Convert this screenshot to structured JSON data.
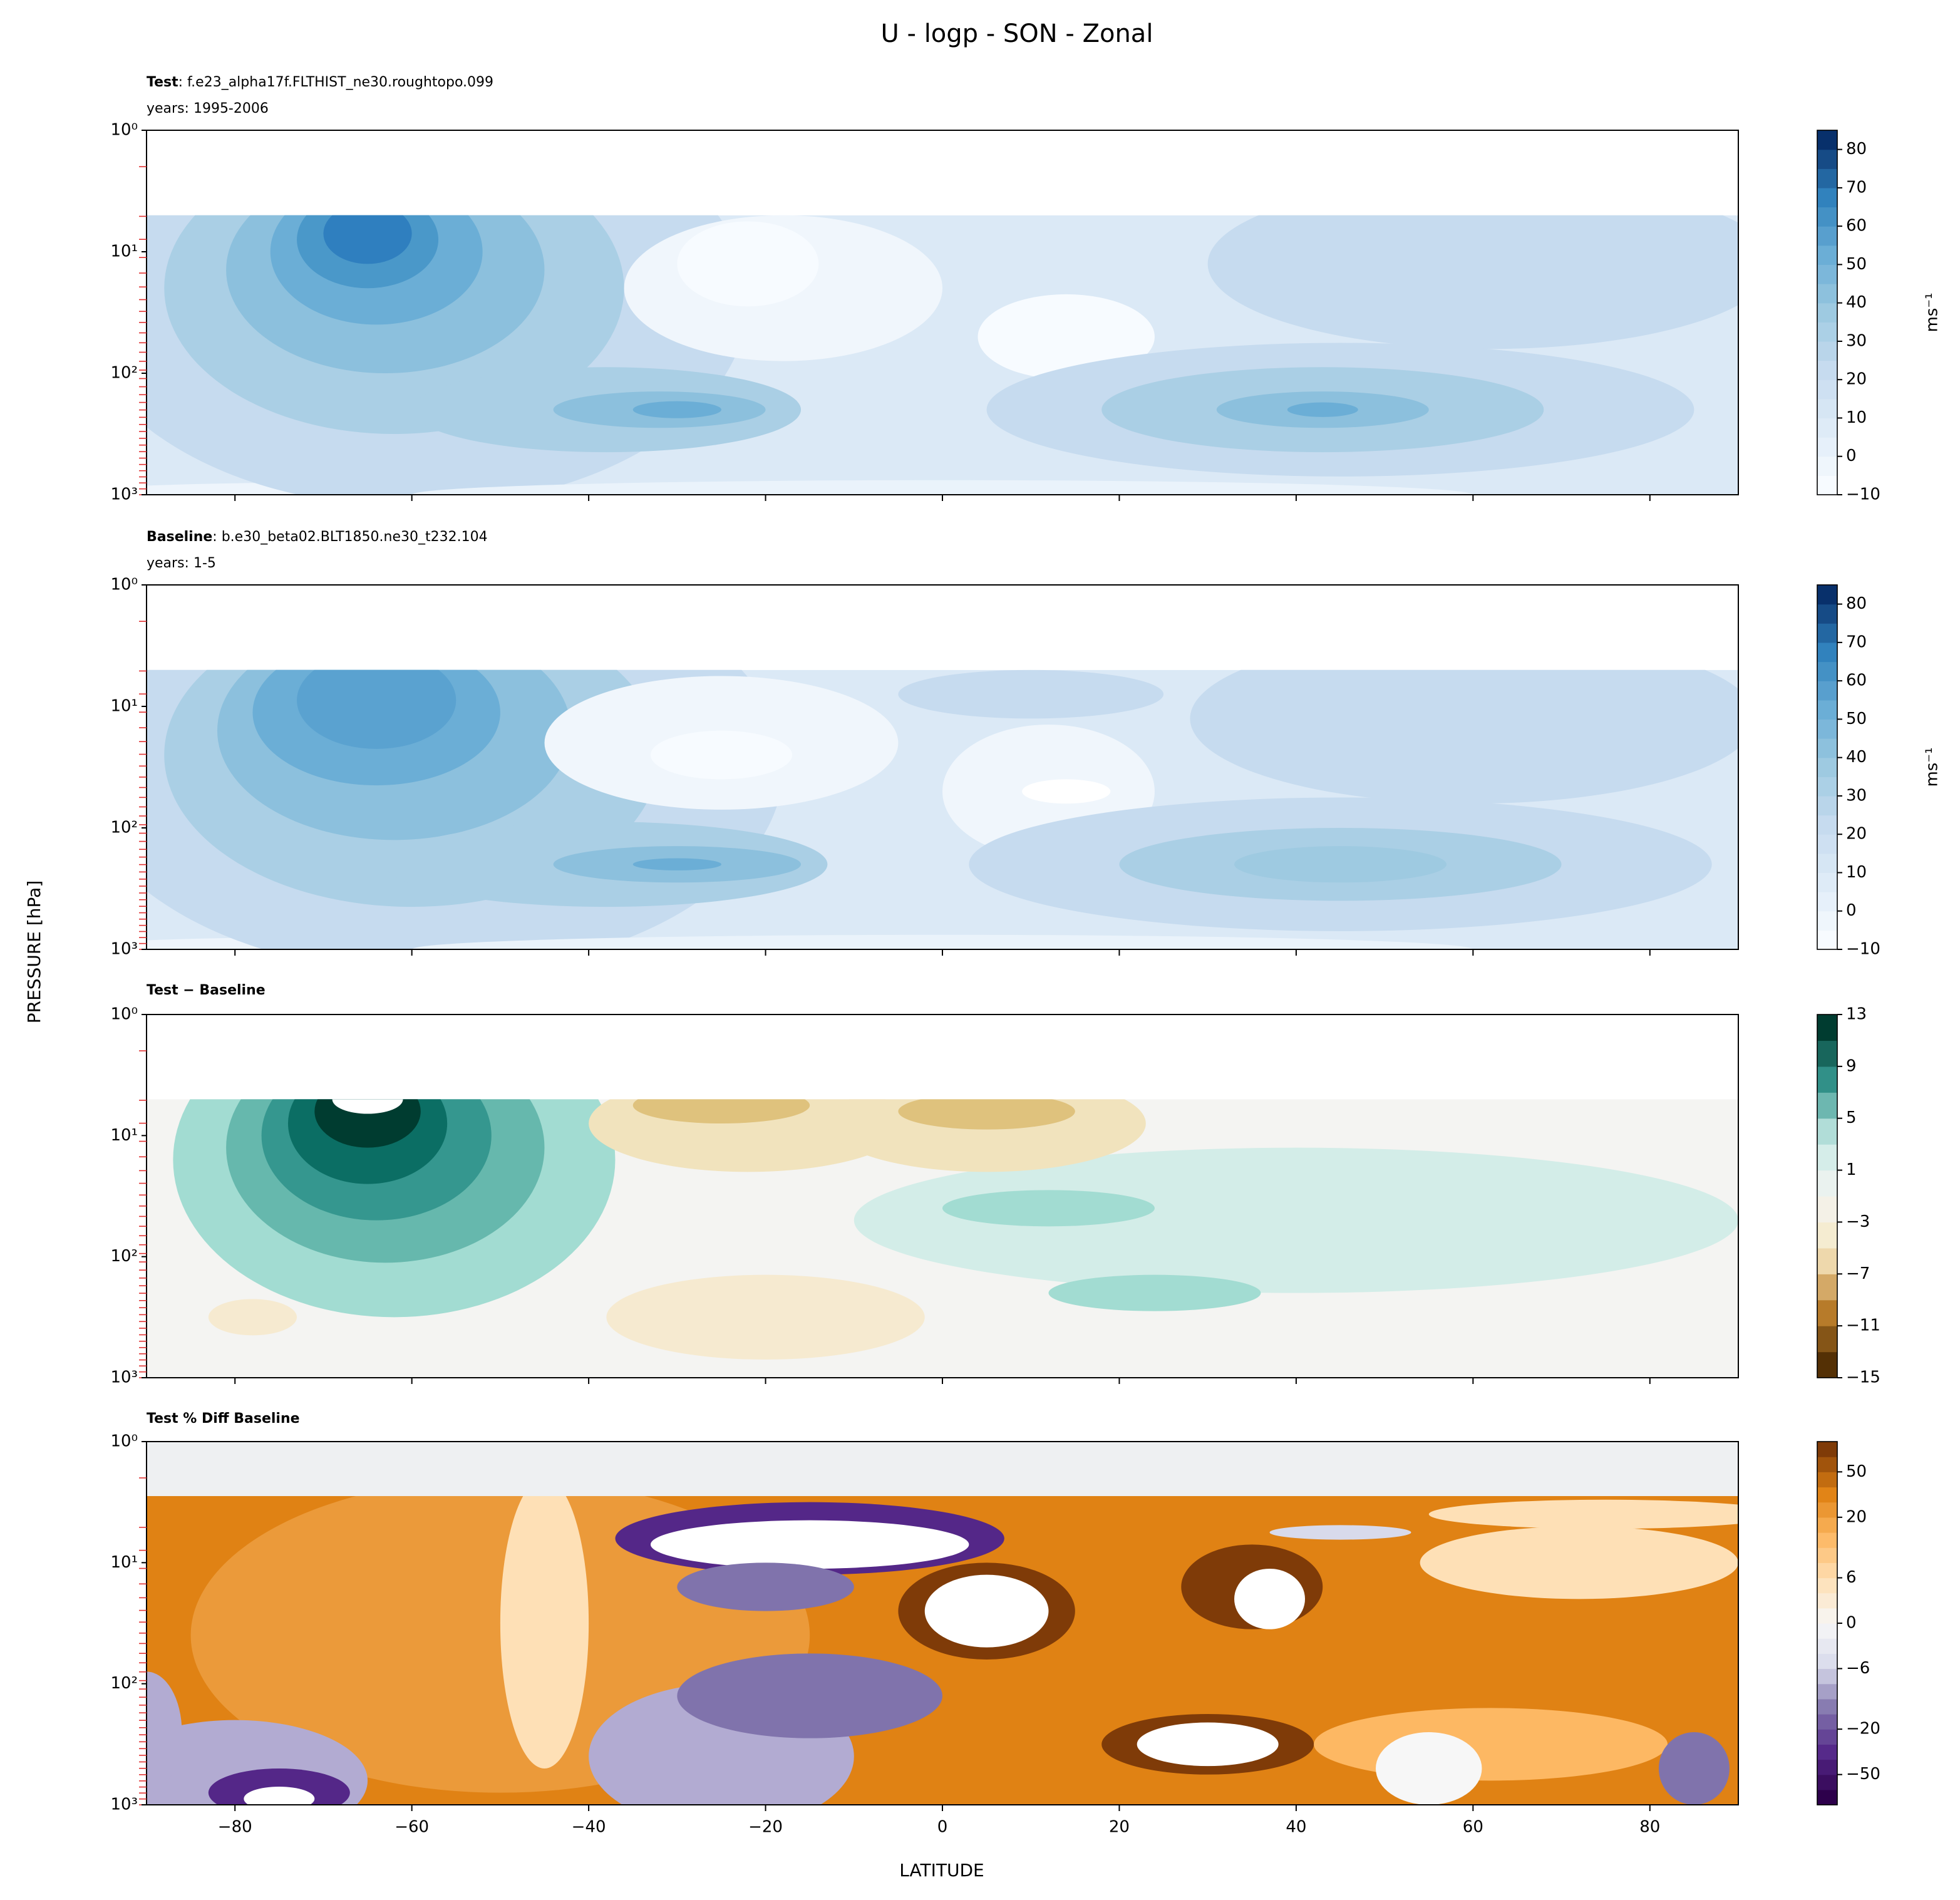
{
  "title": "U - logp - SON - Zonal",
  "y_label": "PRESSURE [hPa]",
  "x_label": "LATITUDE",
  "chart_data": [
    {
      "type": "contour",
      "title": "Test",
      "case_name": ": f.e23_alpha17f.FLTHIST_ne30.roughtopo.099",
      "subtitle": "years: 1995-2006",
      "xlim": [
        -90,
        90
      ],
      "xticks": [
        -80,
        -60,
        -40,
        -20,
        0,
        20,
        40,
        60,
        80
      ],
      "xticklabels": false,
      "ylim": [
        1000,
        1
      ],
      "log_y": true,
      "yticks": [
        {
          "value": 1,
          "label": "10⁰"
        },
        {
          "value": 10,
          "label": "10¹"
        },
        {
          "value": 100,
          "label": "10²"
        },
        {
          "value": 1000,
          "label": "10³"
        }
      ],
      "levels": [
        -10,
        -5,
        0,
        5,
        10,
        15,
        20,
        25,
        30,
        35,
        40,
        45,
        50,
        55,
        60,
        65,
        70,
        75,
        80,
        85
      ],
      "cmap": [
        "#f7fbff",
        "#deebf7",
        "#c6dbef",
        "#9ecae1",
        "#6baed6",
        "#3182bd",
        "#08306b"
      ],
      "cticks": [
        {
          "value": -10,
          "label": "−10"
        },
        0,
        10,
        20,
        30,
        40,
        50,
        60,
        70,
        80
      ],
      "colorbar_label": "ms⁻¹"
    },
    {
      "type": "contour",
      "title": "Baseline",
      "case_name": ": b.e30_beta02.BLT1850.ne30_t232.104",
      "subtitle": "years: 1-5",
      "xlim": [
        -90,
        90
      ],
      "xticks": [
        -80,
        -60,
        -40,
        -20,
        0,
        20,
        40,
        60,
        80
      ],
      "xticklabels": false,
      "ylim": [
        1000,
        1
      ],
      "log_y": true,
      "yticks": [
        {
          "value": 1,
          "label": "10⁰"
        },
        {
          "value": 10,
          "label": "10¹"
        },
        {
          "value": 100,
          "label": "10²"
        },
        {
          "value": 1000,
          "label": "10³"
        }
      ],
      "levels": [
        -10,
        -5,
        0,
        5,
        10,
        15,
        20,
        25,
        30,
        35,
        40,
        45,
        50,
        55,
        60,
        65,
        70,
        75,
        80,
        85
      ],
      "cmap": [
        "#f7fbff",
        "#deebf7",
        "#c6dbef",
        "#9ecae1",
        "#6baed6",
        "#3182bd",
        "#08306b"
      ],
      "cticks": [
        {
          "value": -10,
          "label": "−10"
        },
        0,
        10,
        20,
        30,
        40,
        50,
        60,
        70,
        80
      ],
      "colorbar_label": "ms⁻¹"
    },
    {
      "type": "contour",
      "title": "Test − Baseline",
      "xlim": [
        -90,
        90
      ],
      "xticks": [
        -80,
        -60,
        -40,
        -20,
        0,
        20,
        40,
        60,
        80
      ],
      "xticklabels": false,
      "ylim": [
        1000,
        1
      ],
      "log_y": true,
      "yticks": [
        {
          "value": 1,
          "label": "10⁰"
        },
        {
          "value": 10,
          "label": "10¹"
        },
        {
          "value": 100,
          "label": "10²"
        },
        {
          "value": 1000,
          "label": "10³"
        }
      ],
      "levels": [
        -15,
        -13,
        -11,
        -9,
        -7,
        -5,
        -3,
        -1,
        1,
        3,
        5,
        7,
        9,
        11,
        13
      ],
      "cmap": [
        "#543005",
        "#bf812d",
        "#f6e8c3",
        "#f4f4f2",
        "#c7eae5",
        "#35978f",
        "#003c30"
      ],
      "cticks": [
        {
          "value": -15,
          "label": "−15"
        },
        {
          "value": -11,
          "label": "−11"
        },
        {
          "value": -7,
          "label": "−7"
        },
        {
          "value": -3,
          "label": "−3"
        },
        1,
        5,
        9,
        13
      ]
    },
    {
      "type": "contour",
      "title": "Test % Diff Baseline",
      "xlim": [
        -90,
        90
      ],
      "xticks": [
        {
          "value": -80,
          "label": "−80"
        },
        {
          "value": -60,
          "label": "−60"
        },
        {
          "value": -40,
          "label": "−40"
        },
        {
          "value": -20,
          "label": "−20"
        },
        0,
        20,
        40,
        60,
        80
      ],
      "xticklabels": true,
      "ylim": [
        1000,
        1
      ],
      "log_y": true,
      "yticks": [
        {
          "value": 1,
          "label": "10⁰"
        },
        {
          "value": 10,
          "label": "10¹"
        },
        {
          "value": 100,
          "label": "10²"
        },
        {
          "value": 1000,
          "label": "10³"
        }
      ],
      "levels": [
        -100,
        -75,
        -50,
        -40,
        -30,
        -20,
        -15,
        -10,
        -8,
        -6,
        -4,
        -2,
        0,
        2,
        4,
        6,
        8,
        10,
        15,
        20,
        30,
        40,
        50,
        75,
        100
      ],
      "cmap": [
        "#2d004b",
        "#542788",
        "#8073ac",
        "#d8daeb",
        "#f7f7f7",
        "#fee0b6",
        "#fdb863",
        "#e08214",
        "#7f3b08"
      ],
      "cticks": [
        {
          "value": -50,
          "label": "−50"
        },
        {
          "value": -20,
          "label": "−20"
        },
        {
          "value": -6,
          "label": "−6"
        },
        0,
        6,
        20,
        50
      ]
    }
  ]
}
